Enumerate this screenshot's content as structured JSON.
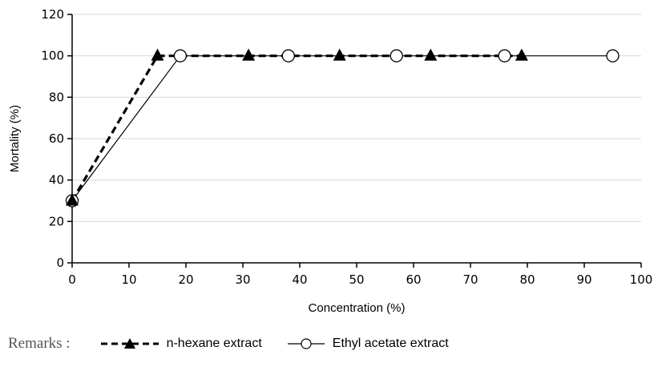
{
  "chart_data": {
    "type": "line",
    "xlabel": "Concentration (%)",
    "ylabel": "Mortality (%)",
    "xlim": [
      0,
      100
    ],
    "ylim": [
      0,
      120
    ],
    "xticks": [
      0,
      10,
      20,
      30,
      40,
      50,
      60,
      70,
      80,
      90,
      100
    ],
    "yticks": [
      0,
      20,
      40,
      60,
      80,
      100,
      120
    ],
    "grid": "horizontal",
    "legend_placement": "bottom",
    "series": [
      {
        "name": "n-hexane extract",
        "marker": "filled-triangle",
        "line": "dashed",
        "color": "#000000",
        "x": [
          0,
          15,
          31,
          47,
          63,
          79
        ],
        "y": [
          30,
          100,
          100,
          100,
          100,
          100
        ]
      },
      {
        "name": "Ethyl acetate extract",
        "marker": "open-circle",
        "line": "solid",
        "color": "#000000",
        "x": [
          0,
          19,
          38,
          57,
          76,
          95
        ],
        "y": [
          30,
          100,
          100,
          100,
          100,
          100
        ]
      }
    ]
  },
  "legend": {
    "remarks": "Remarks :"
  }
}
